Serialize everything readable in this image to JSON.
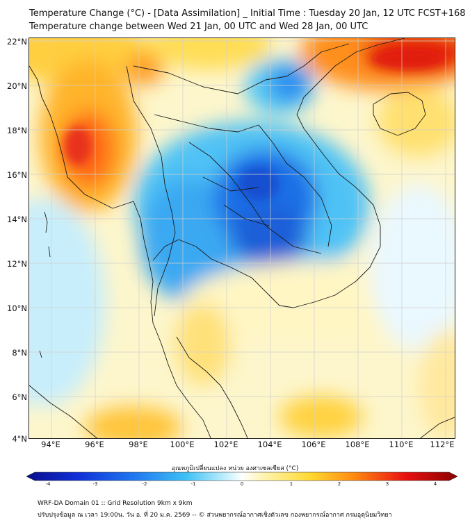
{
  "title_line1": "Temperature Change (°C) - [Data Assimilation] _ Initial Time : Tuesday 20 Jan, 12 UTC FCST+168",
  "title_line2": "Temperature change between Wed 21 Jan, 00 UTC and Wed 28 Jan, 00 UTC",
  "lat_labels": [
    "22°N",
    "20°N",
    "18°N",
    "16°N",
    "14°N",
    "12°N",
    "10°N",
    "8°N",
    "6°N",
    "4°N"
  ],
  "lon_labels": [
    "94°E",
    "96°E",
    "98°E",
    "100°E",
    "102°E",
    "104°E",
    "106°E",
    "108°E",
    "110°E",
    "112°E"
  ],
  "colorbar": {
    "title": "อุณหภูมิเปลี่ยนแปลง หน่วย องศาเซลเซียส (°C)",
    "ticks": [
      "-4",
      "-3",
      "-2",
      "-1",
      "0",
      "1",
      "2",
      "3",
      "4"
    ],
    "range": [
      -4,
      4
    ],
    "colors": [
      "#0a0f8c",
      "#1030d8",
      "#1f78f0",
      "#3ec0f5",
      "#bfeefc",
      "#ffffff",
      "#fff4b0",
      "#ffd830",
      "#ff8a10",
      "#e81010",
      "#8a0000"
    ]
  },
  "footer_line1": "WRF-DA Domain 01 :: Grid Resolution 9km x 9km",
  "footer_line2": "ปรับปรุงข้อมูล ณ เวลา 19:00น. วัน อ. ที่ 20 ม.ค. 2569 -- © ส่วนพยากรณ์อากาศเชิงตัวเลข กองพยากรณ์อากาศ กรมอุตุนิยมวิทยา"
}
